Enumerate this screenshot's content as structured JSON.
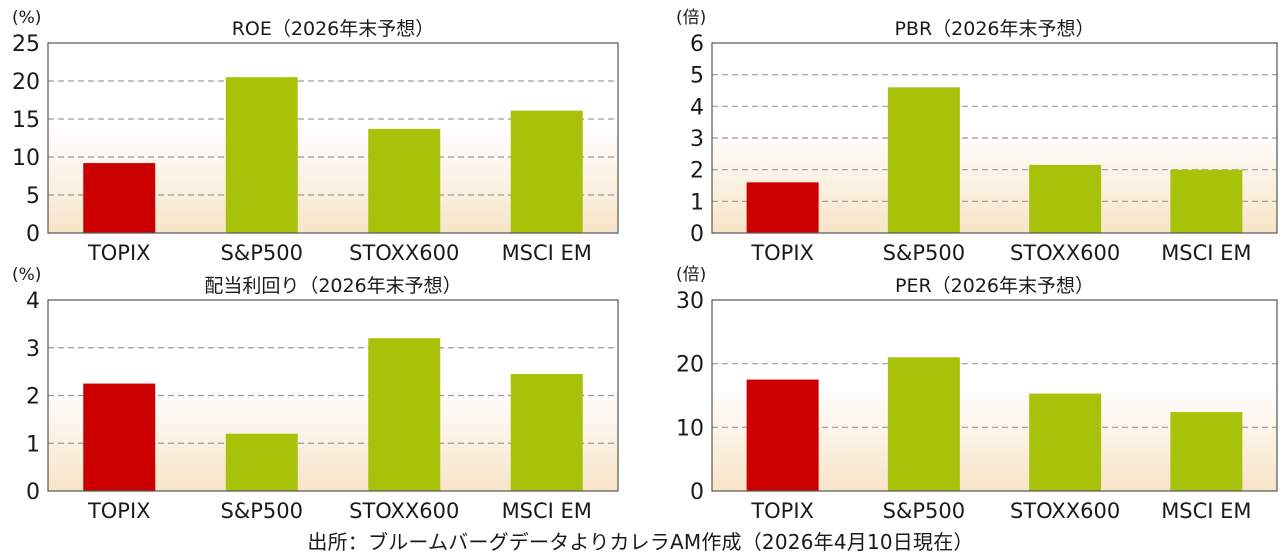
{
  "source_note": "出所：ブルームバーグデータよりカレラAM作成（2026年4月10日現在）",
  "colors": {
    "topix": "#cc0000",
    "others": "#a8c20a",
    "grid": "#9a9a9a",
    "bg_top": "#ffffff",
    "bg_bottom": "#f8e4c8"
  },
  "chart_data": [
    {
      "type": "bar",
      "title": "ROE（2026年末予想）",
      "unit": "(%)",
      "categories": [
        "TOPIX",
        "S&P500",
        "STOXX600",
        "MSCI EM"
      ],
      "values": [
        9.2,
        20.5,
        13.7,
        16.1
      ],
      "ylim": [
        0,
        25
      ],
      "yticks": [
        0,
        5,
        10,
        15,
        20,
        25
      ],
      "grid": true
    },
    {
      "type": "bar",
      "title": "PBR（2026年末予想）",
      "unit": "(倍)",
      "categories": [
        "TOPIX",
        "S&P500",
        "STOXX600",
        "MSCI EM"
      ],
      "values": [
        1.6,
        4.6,
        2.15,
        2.0
      ],
      "ylim": [
        0,
        6
      ],
      "yticks": [
        0,
        1,
        2,
        3,
        4,
        5,
        6
      ],
      "grid": true
    },
    {
      "type": "bar",
      "title": "配当利回り（2026年末予想）",
      "unit": "(%)",
      "categories": [
        "TOPIX",
        "S&P500",
        "STOXX600",
        "MSCI EM"
      ],
      "values": [
        2.25,
        1.2,
        3.2,
        2.45
      ],
      "ylim": [
        0,
        4
      ],
      "yticks": [
        0,
        1,
        2,
        3,
        4
      ],
      "grid": true
    },
    {
      "type": "bar",
      "title": "PER（2026年末予想）",
      "unit": "(倍)",
      "categories": [
        "TOPIX",
        "S&P500",
        "STOXX600",
        "MSCI EM"
      ],
      "values": [
        17.5,
        21.0,
        15.3,
        12.4
      ],
      "ylim": [
        0,
        30
      ],
      "yticks": [
        0,
        10,
        20,
        30
      ],
      "grid": true
    }
  ]
}
